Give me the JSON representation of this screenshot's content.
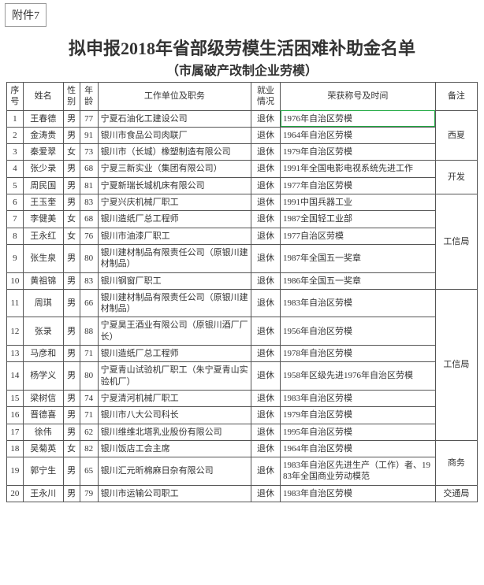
{
  "attachment_label": "附件7",
  "title": "拟申报2018年省部级劳模生活困难补助金名单",
  "subtitle": "（市属破产改制企业劳模）",
  "columns": {
    "idx": "序号",
    "name": "姓名",
    "gender": "性别",
    "age": "年龄",
    "work": "工作单位及职务",
    "status": "就业情况",
    "honor": "荣获称号及时间",
    "note": "备注"
  },
  "rows": [
    {
      "idx": "1",
      "name": "王春德",
      "gender": "男",
      "age": "77",
      "work": "宁夏石油化工建设公司",
      "status": "退休",
      "honor": "1976年自治区劳模"
    },
    {
      "idx": "2",
      "name": "金涛贵",
      "gender": "男",
      "age": "91",
      "work": "银川市食品公司肉联厂",
      "status": "退休",
      "honor": "1964年自治区劳模"
    },
    {
      "idx": "3",
      "name": "秦爱翠",
      "gender": "女",
      "age": "73",
      "work": "银川市（长城）橡塑制造有限公司",
      "status": "退休",
      "honor": "1979年自治区劳模"
    },
    {
      "idx": "4",
      "name": "张少录",
      "gender": "男",
      "age": "68",
      "work": "宁夏三新实业（集团有限公司）",
      "status": "退休",
      "honor": "1991年全国电影电视系统先进工作"
    },
    {
      "idx": "5",
      "name": "周民国",
      "gender": "男",
      "age": "81",
      "work": "宁夏新瑞长城机床有限公司",
      "status": "退休",
      "honor": "1977年自治区劳模"
    },
    {
      "idx": "6",
      "name": "王玉奎",
      "gender": "男",
      "age": "83",
      "work": "宁夏兴庆机械厂职工",
      "status": "退休",
      "honor": "1991中国兵器工业"
    },
    {
      "idx": "7",
      "name": "李健美",
      "gender": "女",
      "age": "68",
      "work": "银川造纸厂总工程师",
      "status": "退休",
      "honor": "1987全国轻工业部"
    },
    {
      "idx": "8",
      "name": "王永红",
      "gender": "女",
      "age": "76",
      "work": "银川市油漆厂职工",
      "status": "退休",
      "honor": "1977自治区劳模"
    },
    {
      "idx": "9",
      "name": "张生泉",
      "gender": "男",
      "age": "80",
      "work": "银川建材制品有限责任公司（原银川建材制品）",
      "status": "退休",
      "honor": "1987年全国五一奖章"
    },
    {
      "idx": "10",
      "name": "黄祖锦",
      "gender": "男",
      "age": "83",
      "work": "银川钢窗厂职工",
      "status": "退休",
      "honor": "1986年全国五一奖章"
    },
    {
      "idx": "11",
      "name": "周琪",
      "gender": "男",
      "age": "66",
      "work": "银川建材制品有限责任公司（原银川建材制品）",
      "status": "退休",
      "honor": "1983年自治区劳模"
    },
    {
      "idx": "12",
      "name": "张录",
      "gender": "男",
      "age": "88",
      "work": "宁夏昊王酒业有限公司（原银川酒厂厂长）",
      "status": "退休",
      "honor": "1956年自治区劳模"
    },
    {
      "idx": "13",
      "name": "马彦和",
      "gender": "男",
      "age": "71",
      "work": "银川造纸厂总工程师",
      "status": "退休",
      "honor": "1978年自治区劳模"
    },
    {
      "idx": "14",
      "name": "杨学义",
      "gender": "男",
      "age": "80",
      "work": "宁夏青山试验机厂职工（朱宁夏青山实验机厂）",
      "status": "退休",
      "honor": "1958年区级先进1976年自治区劳模"
    },
    {
      "idx": "15",
      "name": "梁树信",
      "gender": "男",
      "age": "74",
      "work": "宁夏清河机械厂职工",
      "status": "退休",
      "honor": "1983年自治区劳模"
    },
    {
      "idx": "16",
      "name": "晋德喜",
      "gender": "男",
      "age": "71",
      "work": "银川市八大公司科长",
      "status": "退休",
      "honor": "1979年自治区劳模"
    },
    {
      "idx": "17",
      "name": "徐伟",
      "gender": "男",
      "age": "62",
      "work": "银川维维北塔乳业股份有限公司",
      "status": "退休",
      "honor": "1995年自治区劳模"
    },
    {
      "idx": "18",
      "name": "吴菊英",
      "gender": "女",
      "age": "82",
      "work": "银川饭店工会主席",
      "status": "退休",
      "honor": "1964年自治区劳模"
    },
    {
      "idx": "19",
      "name": "郭宁生",
      "gender": "男",
      "age": "65",
      "work": "银川汇元昕棉麻日杂有限公司",
      "status": "退休",
      "honor": "1983年自治区先进生产（工作）者、1983年全国商业劳动模范"
    },
    {
      "idx": "20",
      "name": "王永川",
      "gender": "男",
      "age": "79",
      "work": "银川市运输公司职工",
      "status": "退休",
      "honor": "1983年自治区劳模"
    }
  ],
  "notes": [
    {
      "start": 0,
      "span": 3,
      "text": "西夏"
    },
    {
      "start": 3,
      "span": 2,
      "text": "开发"
    },
    {
      "start": 5,
      "span": 5,
      "text": "工信局"
    },
    {
      "start": 10,
      "span": 7,
      "text": "工信局"
    },
    {
      "start": 17,
      "span": 2,
      "text": "商务"
    },
    {
      "start": 19,
      "span": 1,
      "text": "交通局"
    }
  ],
  "highlight_row": 0
}
